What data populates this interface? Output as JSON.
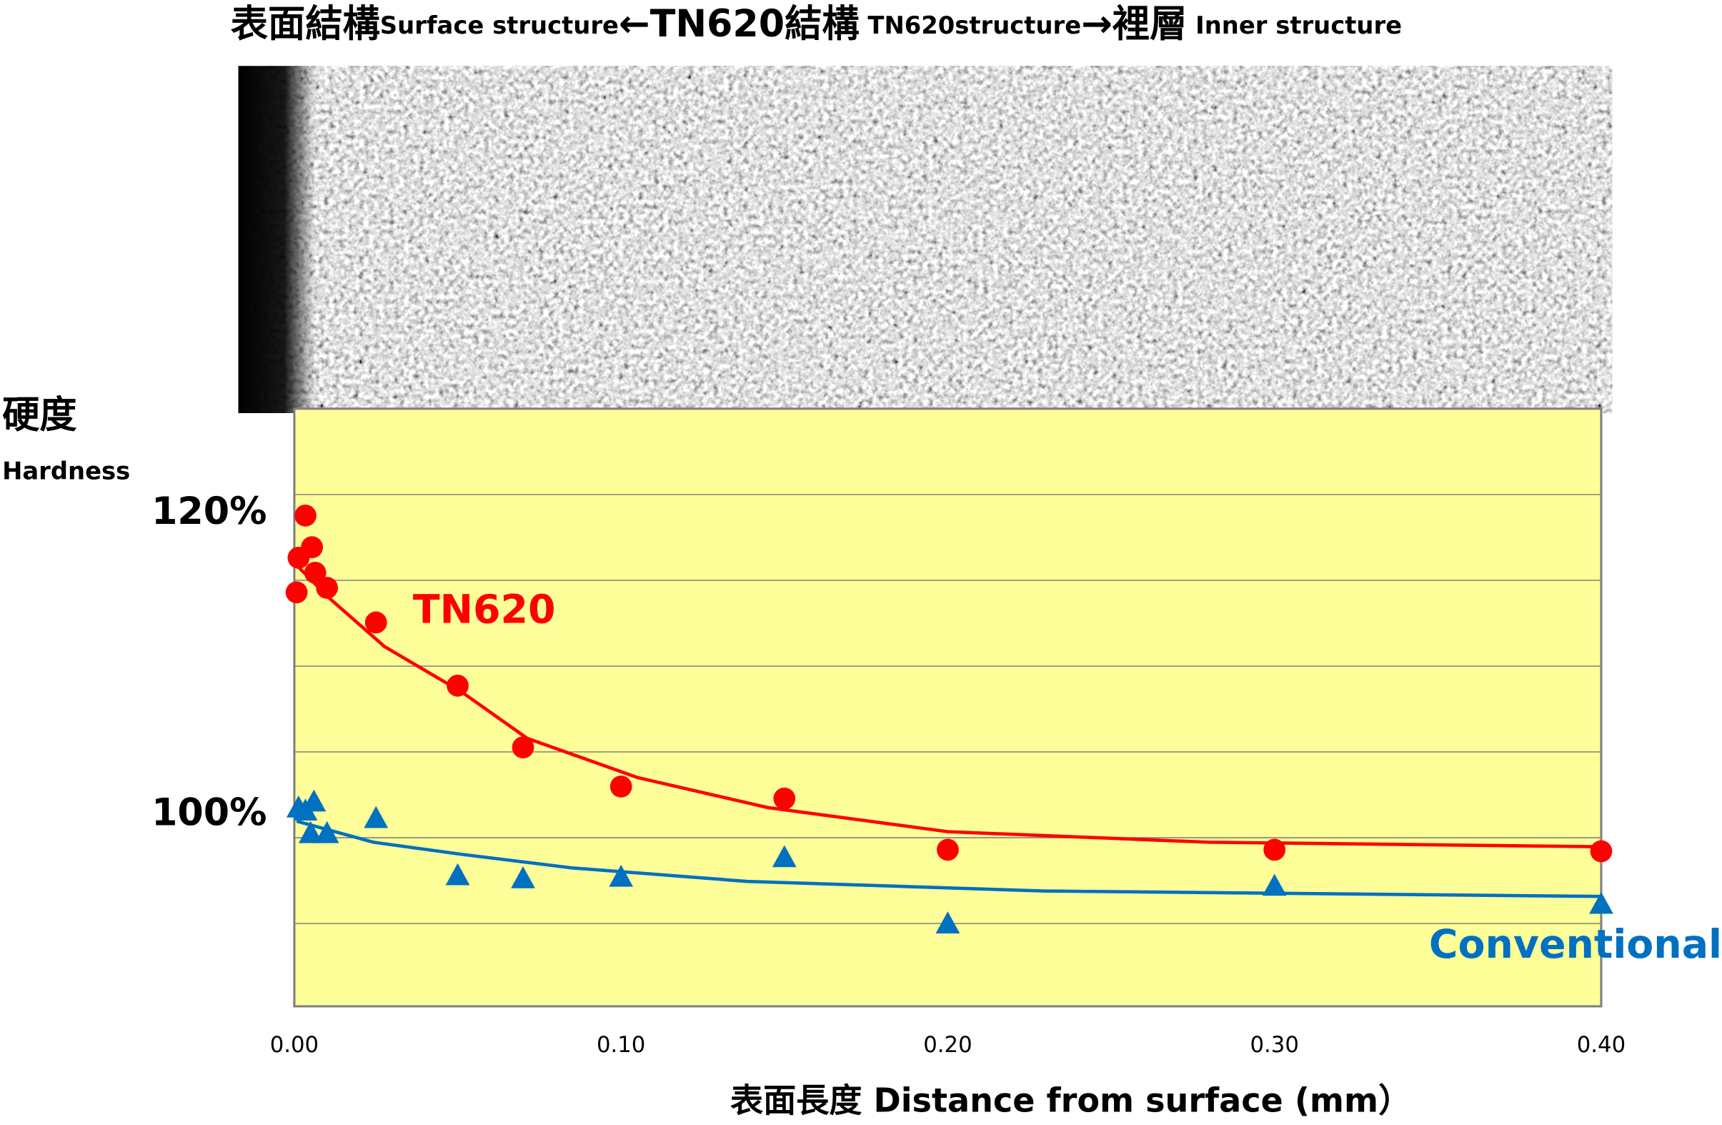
{
  "chart_data": {
    "type": "scatter",
    "title_parts": [
      "表面結構",
      "Surface structure",
      "←",
      "TN620結構",
      " TN620structure",
      "→",
      "裡層",
      " Inner structure"
    ],
    "y_label": "硬度",
    "y_label_en": "Hardness",
    "x_label": "表面長度 Distance from surface (mm）",
    "xlim": [
      0,
      0.4
    ],
    "xticks": [
      {
        "value": 0,
        "label": "0.00"
      },
      {
        "value": 0.1,
        "label": "0.10"
      },
      {
        "value": 0.2,
        "label": "0.20"
      },
      {
        "value": 0.3,
        "label": "0.30"
      },
      {
        "value": 0.4,
        "label": "0.40"
      }
    ],
    "ylim": [
      87.3,
      127.0
    ],
    "yticks": [
      {
        "value": 100,
        "label": "100%"
      },
      {
        "value": 120,
        "label": "120%"
      }
    ],
    "grid_lines": [
      92.8,
      98.5,
      104.2,
      109.9,
      115.6,
      121.3
    ],
    "plot_background": "#ffff99",
    "series": [
      {
        "name": "TN620",
        "color": "#ff0000",
        "marker": "circle",
        "x": [
          0.0007,
          0.0013,
          0.0034,
          0.0054,
          0.0064,
          0.01,
          0.025,
          0.05,
          0.07,
          0.1,
          0.15,
          0.2,
          0.3,
          0.4
        ],
        "values": [
          114.8,
          117.1,
          119.9,
          117.8,
          116.1,
          115.1,
          112.8,
          108.6,
          104.5,
          101.9,
          101.1,
          97.7,
          97.7,
          97.6
        ],
        "fit_x": [
          0.0007,
          0.0108,
          0.0276,
          0.0511,
          0.0713,
          0.105,
          0.145,
          0.2,
          0.28,
          0.4
        ],
        "fit_values": [
          116.6,
          114.4,
          111.2,
          108.2,
          105.1,
          102.5,
          100.5,
          98.9,
          98.2,
          97.9
        ]
      },
      {
        "name": "Conventional",
        "color": "#0070c0",
        "marker": "triangle",
        "x": [
          0.0013,
          0.0034,
          0.006,
          0.005,
          0.01,
          0.025,
          0.05,
          0.07,
          0.1,
          0.15,
          0.2,
          0.3,
          0.4
        ],
        "values": [
          100.5,
          100.3,
          100.9,
          98.8,
          98.8,
          99.8,
          96.0,
          95.8,
          95.9,
          97.2,
          92.8,
          95.3,
          94.1
        ],
        "fit_x": [
          0.0007,
          0.0242,
          0.0511,
          0.0847,
          0.1385,
          0.2292,
          0.4
        ],
        "fit_values": [
          99.6,
          98.2,
          97.4,
          96.5,
          95.6,
          94.96,
          94.6
        ]
      }
    ]
  }
}
